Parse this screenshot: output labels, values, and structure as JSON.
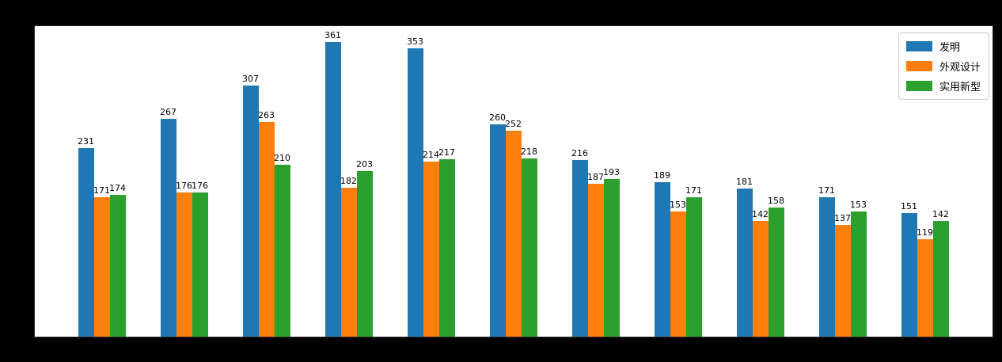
{
  "figure": {
    "background_color": "#000000",
    "plot_background_color": "#ffffff"
  },
  "chart_data": {
    "type": "bar",
    "title": "",
    "xlabel": "",
    "ylabel": "",
    "group_count": 11,
    "categories": [
      "",
      "",
      "",
      "",
      "",
      "",
      "",
      "",
      "",
      "",
      ""
    ],
    "series": [
      {
        "name": "发明",
        "color": "#1f77b4",
        "values": [
          231,
          267,
          307,
          361,
          353,
          260,
          216,
          189,
          181,
          171,
          151
        ]
      },
      {
        "name": "外观设计",
        "color": "#ff7f0e",
        "values": [
          171,
          176,
          263,
          182,
          214,
          252,
          187,
          153,
          142,
          137,
          119
        ]
      },
      {
        "name": "实用新型",
        "color": "#2ca02c",
        "values": [
          174,
          176,
          210,
          203,
          217,
          218,
          193,
          171,
          158,
          153,
          142
        ]
      }
    ],
    "ylim": [
      0,
      380
    ],
    "bar_value_labels": true,
    "grid": false,
    "legend_position": "upper-right",
    "tick_labels_visible": false
  }
}
